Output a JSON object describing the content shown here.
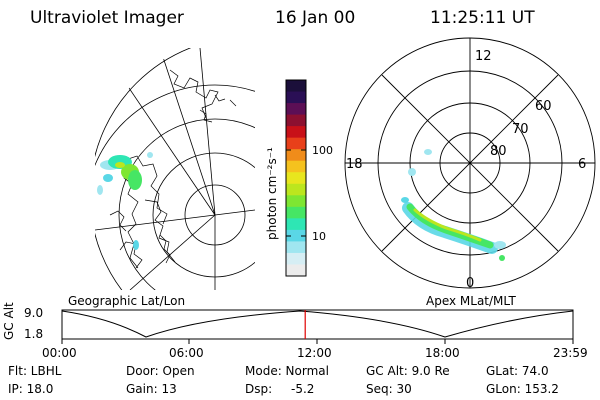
{
  "header": {
    "instrument": "Ultraviolet Imager",
    "date": "16 Jan 00",
    "time": "11:25:11 UT"
  },
  "geographic_panel": {
    "label": "Geographic Lat/Lon"
  },
  "polar_panel": {
    "label": "Apex MLat/MLT",
    "mlt_labels": [
      "12",
      "18",
      "6",
      "0"
    ],
    "lat_labels": [
      "60",
      "70",
      "80"
    ]
  },
  "colorbar": {
    "unit_label": "photon cm⁻²s⁻¹",
    "ticks": [
      "100",
      "10"
    ],
    "colors": [
      "#1b0f3a",
      "#2a0f55",
      "#5c0f55",
      "#8c1030",
      "#c81018",
      "#e8401a",
      "#f08c1a",
      "#f5c21e",
      "#e8e61e",
      "#bce61e",
      "#7ee632",
      "#46e664",
      "#2ee6b4",
      "#5ad7e6",
      "#a0e6f0",
      "#d6eef4",
      "#ececec"
    ]
  },
  "altitude_strip": {
    "ylabel": "GC Alt",
    "ytick_top": "9.0",
    "ytick_bottom": "1.8",
    "xticks": [
      "00:00",
      "06:00",
      "12:00",
      "18:00",
      "23:59"
    ],
    "current_marker_hour": 11.42
  },
  "info": {
    "filter_label": "Flt: LBHL",
    "ip_label": "IP: 18.0",
    "door_label": "Door: Open",
    "gain_label": "Gain: 13",
    "mode_label": "Mode: Normal",
    "dsp_label": "Dsp:",
    "dsp_value": "-5.2",
    "gcalt_label": "GC Alt: 9.0 Re",
    "seq_label": "Seq: 30",
    "glat_label": "GLat: 74.0",
    "glon_label": "GLon: 153.2"
  }
}
